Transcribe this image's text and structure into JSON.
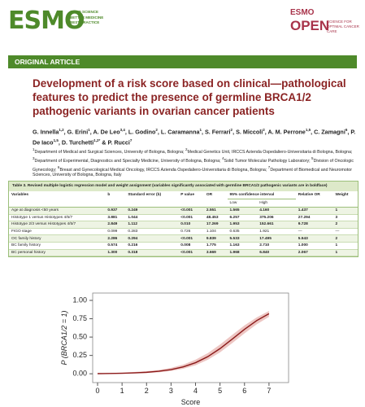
{
  "header": {
    "logo": "ESMO",
    "tagline": [
      "GOOD SCIENCE",
      "BETTER MEDICINE",
      "BEST PRACTICE"
    ],
    "journal_top": "ESMO",
    "journal_name": "OPEN",
    "journal_tagline": "SCIENCE FOR OPTIMAL CANCER CARE"
  },
  "article_type": "ORIGINAL ARTICLE",
  "title": "Development of a risk score based on clinical—pathological features to predict the presence of germline BRCA1/2 pathogenic variants in ovarian cancer patients",
  "authors": [
    {
      "name": "G. Innella",
      "sup": "1,2",
      "sep": ", "
    },
    {
      "name": "G. Erini",
      "sup": "1",
      "sep": ", "
    },
    {
      "name": "A. De Leo",
      "sup": "3,4",
      "sep": ", "
    },
    {
      "name": "L. Godino",
      "sup": "2",
      "sep": ", "
    },
    {
      "name": "L. Caramanna",
      "sup": "1",
      "sep": ", "
    },
    {
      "name": "S. Ferrari",
      "sup": "2",
      "sep": ", "
    },
    {
      "name": "S. Miccoli",
      "sup": "2",
      "sep": ", "
    },
    {
      "name": "A. M. Perrone",
      "sup": "1,5",
      "sep": ", "
    },
    {
      "name": "C. Zamagni",
      "sup": "6",
      "sep": ", "
    },
    {
      "name": "P. De Iaco",
      "sup": "1,5",
      "sep": ", "
    },
    {
      "name": "D. Turchetti",
      "sup": "1,2*",
      "sep": " & "
    },
    {
      "name": "P. Rucci",
      "sup": "7",
      "sep": ""
    }
  ],
  "affiliations": [
    {
      "num": "1",
      "text": "Department of Medical and Surgical Sciences, University of Bologna, Bologna; "
    },
    {
      "num": "2",
      "text": "Medical Genetics Unit, IRCCS Azienda Ospedaliero-Universitaria di Bologna, Bologna; "
    },
    {
      "num": "3",
      "text": "Department of Experimental, Diagnostics and Specialty Medicine, University of Bologna, Bologna; "
    },
    {
      "num": "4",
      "text": "Solid Tumor Molecular Pathology Laboratory; "
    },
    {
      "num": "5",
      "text": "Division of Oncologic Gynecology; "
    },
    {
      "num": "6",
      "text": "Breast and Gynecological Medical Oncology, IRCCS Azienda Ospedaliero-Universitaria di Bologna, Bologna; "
    },
    {
      "num": "7",
      "text": "Department of Biomedical and Neuromotor Sciences, University of Bologna, Bologna, Italy"
    }
  ],
  "table": {
    "caption": "Table 3. Revised multiple logistic regression model and weight assignment (variables significantly associated with germline BRCA1/2 pathogenic variants are in boldface)",
    "columns": [
      "Variables",
      "b",
      "Standard error (b)",
      "P value",
      "OR",
      "95% confidence interval",
      "Relative OR",
      "Weight"
    ],
    "subcolumns": [
      "Low",
      "High"
    ],
    "rows": [
      {
        "bold": true,
        "cells": [
          "Age at diagnosis <50 years",
          "0.937",
          "0.249",
          "<0.001",
          "2.551",
          "1.565",
          "4.160",
          "1.437",
          "1"
        ]
      },
      {
        "bold": true,
        "cells": [
          "Histotype 1 versus Histotypes 4/5/7",
          "3.881",
          "1.044",
          "<0.001",
          "48.453",
          "6.257",
          "375.206",
          "27.294",
          "3"
        ]
      },
      {
        "bold": true,
        "cells": [
          "Histotype 2/3 versus Histotypes 4/5/7",
          "2.849",
          "1.112",
          "0.010",
          "17.269",
          "1.953",
          "152.661",
          "9.728",
          "2"
        ]
      },
      {
        "bold": false,
        "cells": [
          "FIGO stage",
          "0.099",
          "0.283",
          "0.726",
          "1.104",
          "0.635",
          "1.921",
          "—",
          "—"
        ]
      },
      {
        "bold": true,
        "cells": [
          "OC family history",
          "2.286",
          "0.294",
          "<0.001",
          "9.839",
          "5.533",
          "17.495",
          "5.543",
          "2"
        ]
      },
      {
        "bold": true,
        "cells": [
          "BC family history",
          "0.574",
          "0.216",
          "0.008",
          "1.775",
          "1.163",
          "2.710",
          "1.000",
          "1"
        ]
      },
      {
        "bold": true,
        "cells": [
          "BC personal history",
          "1.300",
          "0.318",
          "<0.001",
          "3.669",
          "1.968",
          "6.840",
          "2.067",
          "1"
        ]
      }
    ]
  },
  "chart_data": {
    "type": "line",
    "x_label": "Score",
    "y_label": "P (BRCA1/2 = 1)",
    "x": [
      0,
      0.5,
      1,
      1.5,
      2,
      2.5,
      3,
      3.5,
      4,
      4.5,
      5,
      5.5,
      6,
      6.5,
      7
    ],
    "series": [
      {
        "color": "#8b1a1a",
        "band_color": "#e9b8b4",
        "values": [
          0.002,
          0.004,
          0.007,
          0.012,
          0.02,
          0.034,
          0.057,
          0.094,
          0.151,
          0.233,
          0.343,
          0.473,
          0.606,
          0.725,
          0.819
        ],
        "lower": [
          0,
          0.001,
          0.002,
          0.005,
          0.01,
          0.02,
          0.038,
          0.068,
          0.116,
          0.19,
          0.292,
          0.418,
          0.551,
          0.675,
          0.775
        ],
        "upper": [
          0.007,
          0.011,
          0.016,
          0.024,
          0.035,
          0.052,
          0.081,
          0.125,
          0.192,
          0.281,
          0.398,
          0.53,
          0.659,
          0.768,
          0.856
        ]
      }
    ],
    "xlim": [
      -0.2,
      7.8
    ],
    "ylim": [
      -0.12,
      1.1
    ],
    "xticks": [
      0,
      1,
      2,
      3,
      4,
      5,
      6,
      7
    ],
    "yticks": [
      {
        "value": 0,
        "label": "0.00"
      },
      {
        "value": 0.25,
        "label": "0.25"
      },
      {
        "value": 0.5,
        "label": "0.50"
      },
      {
        "value": 0.75,
        "label": "0.75"
      },
      {
        "value": 1,
        "label": "1.00"
      }
    ]
  }
}
